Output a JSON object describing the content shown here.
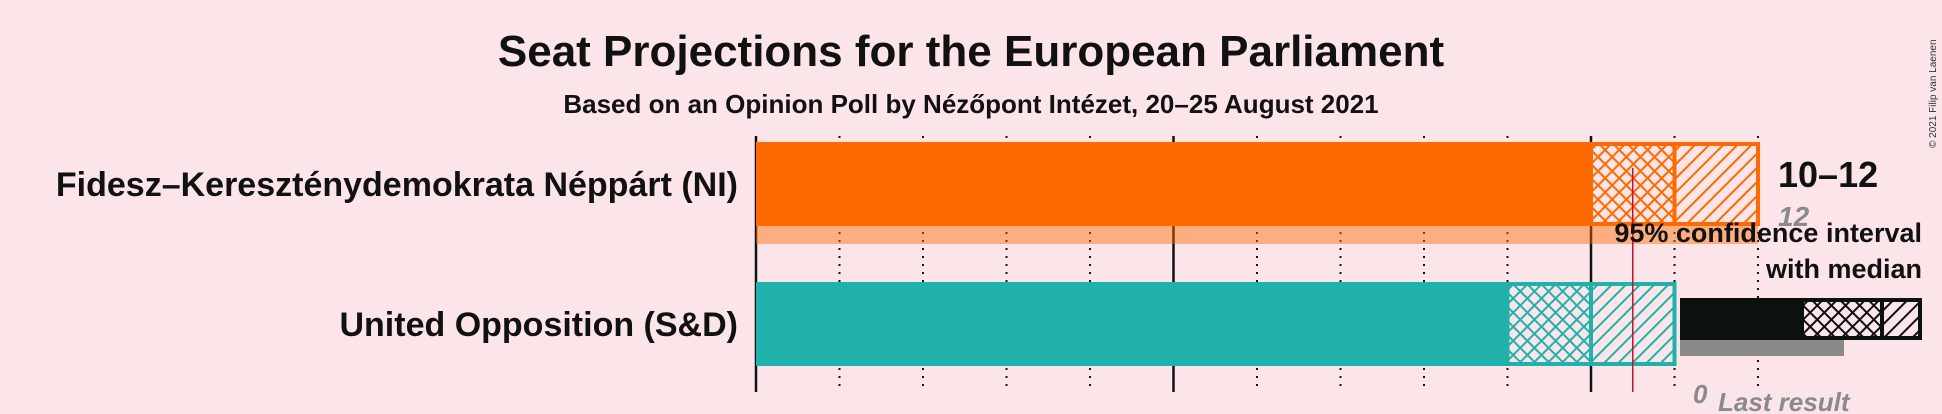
{
  "title": "Seat Projections for the European Parliament",
  "subtitle": "Based on an Opinion Poll by Nézőpont Intézet, 20–25 August 2021",
  "copyright": "© 2021 Filip van Laenen",
  "chart_data": {
    "type": "bar",
    "orientation": "horizontal",
    "x_range": [
      0,
      12
    ],
    "majority_line": 10.5,
    "gridlines": "dotted every seat, solid every 5",
    "series": [
      {
        "party": "Fidesz–Kereszténydemokrata Néppárt (NI)",
        "color": "#FF6A00",
        "ci_low": 10,
        "median": 11,
        "ci_high": 12,
        "range_label": "10–12",
        "last_result": 12,
        "last_result_label": "12"
      },
      {
        "party": "United Opposition (S&D)",
        "color": "#20B2AA",
        "ci_low": 9,
        "median": 10,
        "ci_high": 11,
        "range_label": "",
        "last_result": 0,
        "last_result_label": ""
      }
    ],
    "legend": {
      "ci_line1": "95% confidence interval",
      "ci_line2": "with median",
      "last_result_label": "Last result",
      "last_result_value": "0"
    }
  },
  "colors": {
    "background": "#FBE5E8",
    "majority_line": "#C8102E",
    "legend": "#0B120D",
    "last_result": "#8A8A8A"
  }
}
